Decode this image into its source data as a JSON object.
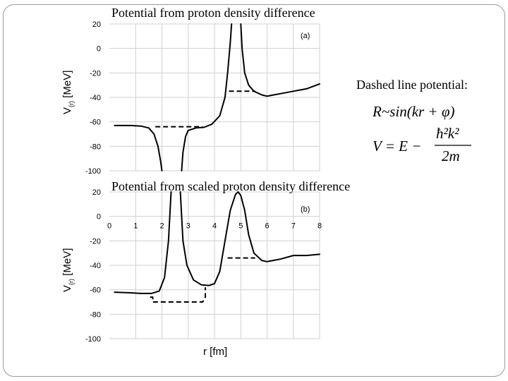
{
  "slide": {
    "dashed_caption": "Dashed line potential:",
    "formula_1": "R~sin(kr + φ)",
    "formula_2_lhs": "V = E −",
    "formula_2_num": "ħ²k²",
    "formula_2_den": "2m"
  },
  "chart_data": [
    {
      "type": "line",
      "title": "Potential from proton density difference",
      "panel_label": "(a)",
      "ylabel": "V(r) [MeV]",
      "xlim": [
        0,
        8
      ],
      "ylim": [
        -100,
        20
      ],
      "yticks": [
        20,
        0,
        -20,
        -40,
        -60,
        -80,
        -100
      ],
      "xticks": [],
      "series": [
        {
          "style": "solid",
          "x": [
            0.2,
            0.8,
            1.2,
            1.5,
            1.7,
            1.85,
            1.95,
            2.0
          ],
          "y": [
            -63,
            -63,
            -63.5,
            -65,
            -70,
            -80,
            -92,
            -100
          ]
        },
        {
          "style": "solid",
          "x": [
            2.75,
            2.8,
            2.9,
            3.0,
            3.3,
            3.6,
            3.9,
            4.2,
            4.4,
            4.5,
            4.6,
            4.65
          ],
          "y": [
            -100,
            -85,
            -72,
            -67,
            -65,
            -64.5,
            -62,
            -55,
            -40,
            -20,
            5,
            20
          ]
        },
        {
          "style": "solid",
          "x": [
            5.0,
            5.05,
            5.15,
            5.3,
            5.5,
            5.8,
            6.0,
            6.5,
            7.0,
            7.5,
            8.0
          ],
          "y": [
            20,
            0,
            -20,
            -30,
            -35,
            -38,
            -39,
            -37,
            -35,
            -33,
            -29
          ]
        },
        {
          "style": "dashed",
          "x": [
            1.75,
            3.55
          ],
          "y": [
            -64,
            -64
          ]
        },
        {
          "style": "dashed",
          "x": [
            4.55,
            5.55
          ],
          "y": [
            -35,
            -35
          ]
        }
      ]
    },
    {
      "type": "line",
      "title": "Potential from scaled proton density difference",
      "panel_label": "(b)",
      "ylabel": "V(r) [MeV]",
      "xlabel": "r [fm]",
      "xlim": [
        0,
        8
      ],
      "ylim": [
        -100,
        20
      ],
      "yticks": [
        20,
        0,
        -20,
        -40,
        -60,
        -80,
        -100
      ],
      "xticks": [
        0,
        1,
        2,
        3,
        4,
        5,
        6,
        7,
        8
      ],
      "series": [
        {
          "style": "solid",
          "x": [
            0.2,
            0.8,
            1.2,
            1.6,
            1.9,
            2.1,
            2.25,
            2.35
          ],
          "y": [
            -62,
            -62.5,
            -63,
            -63,
            -61,
            -50,
            -20,
            20
          ]
        },
        {
          "style": "solid",
          "x": [
            2.7,
            2.8,
            2.95,
            3.2,
            3.5,
            3.8,
            4.0,
            4.2,
            4.4,
            4.6,
            4.8,
            4.9,
            5.0,
            5.15,
            5.3,
            5.5,
            5.8,
            6.0,
            6.5,
            7.0,
            7.5,
            8.0
          ],
          "y": [
            20,
            -20,
            -40,
            -52,
            -56,
            -56.5,
            -55,
            -45,
            -20,
            5,
            18,
            20,
            17,
            5,
            -15,
            -30,
            -36,
            -37,
            -35,
            -32,
            -32,
            -31
          ]
        },
        {
          "style": "dashed",
          "x": [
            1.55,
            1.65,
            1.65,
            3.55,
            3.65,
            3.65
          ],
          "y": [
            -66,
            -66,
            -70,
            -70,
            -66,
            -58
          ]
        },
        {
          "style": "dashed",
          "x": [
            4.5,
            5.55
          ],
          "y": [
            -34,
            -34
          ]
        }
      ]
    }
  ]
}
